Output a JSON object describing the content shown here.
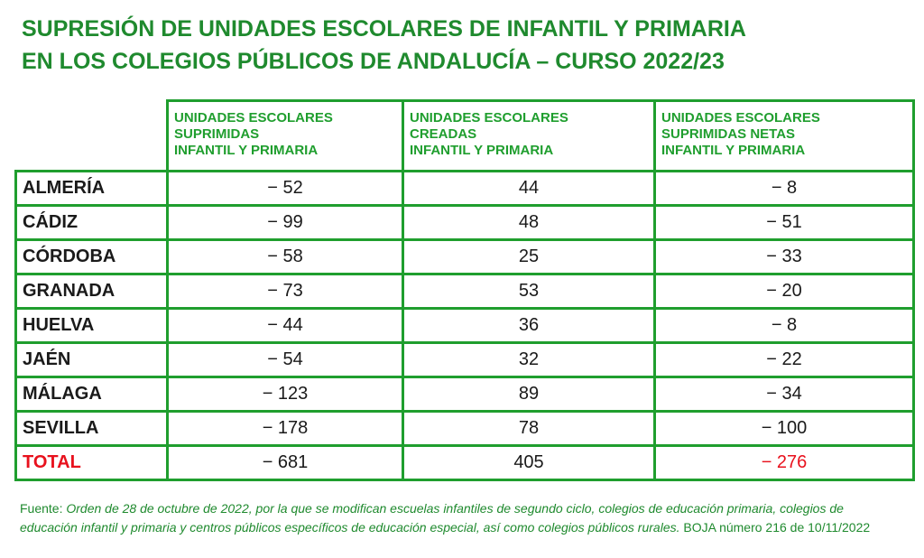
{
  "title": {
    "line1": "SUPRESIÓN DE UNIDADES ESCOLARES DE INFANTIL Y PRIMARIA",
    "line2": "EN LOS COLEGIOS PÚBLICOS DE ANDALUCÍA – CURSO 2022/23"
  },
  "table": {
    "headers": [
      {
        "l1": "UNIDADES ESCOLARES",
        "l2": "SUPRIMIDAS",
        "l3": "INFANTIL Y PRIMARIA"
      },
      {
        "l1": "UNIDADES ESCOLARES",
        "l2": "CREADAS",
        "l3": "INFANTIL Y PRIMARIA"
      },
      {
        "l1": "UNIDADES ESCOLARES",
        "l2": "SUPRIMIDAS NETAS",
        "l3": "INFANTIL Y PRIMARIA"
      }
    ],
    "rows": [
      {
        "province": "ALMERÍA",
        "suprimidas": "− 52",
        "creadas": "44",
        "netas": "− 8"
      },
      {
        "province": "CÁDIZ",
        "suprimidas": "− 99",
        "creadas": "48",
        "netas": "− 51"
      },
      {
        "province": "CÓRDOBA",
        "suprimidas": "− 58",
        "creadas": "25",
        "netas": "− 33"
      },
      {
        "province": "GRANADA",
        "suprimidas": "− 73",
        "creadas": "53",
        "netas": "− 20"
      },
      {
        "province": "HUELVA",
        "suprimidas": "− 44",
        "creadas": "36",
        "netas": "− 8"
      },
      {
        "province": "JAÉN",
        "suprimidas": "− 54",
        "creadas": "32",
        "netas": "− 22"
      },
      {
        "province": "MÁLAGA",
        "suprimidas": "− 123",
        "creadas": "89",
        "netas": "− 34"
      },
      {
        "province": "SEVILLA",
        "suprimidas": "− 178",
        "creadas": "78",
        "netas": "− 100"
      }
    ],
    "total": {
      "province": "TOTAL",
      "suprimidas": "− 681",
      "creadas": "405",
      "netas": "− 276"
    }
  },
  "source": {
    "label": "Fuente: ",
    "italic": "Orden de 28 de octubre de 2022, por la que se modifican escuelas infantiles de segundo ciclo, colegios de educación primaria, colegios de educación infantil y primaria y centros públicos específicos de educación especial, así como colegios públicos rurales.",
    "rest": " BOJA número 216 de 10/11/2022"
  },
  "colors": {
    "green": "#1f9e2e",
    "title_green": "#1f8a2e",
    "red": "#e8111d"
  }
}
